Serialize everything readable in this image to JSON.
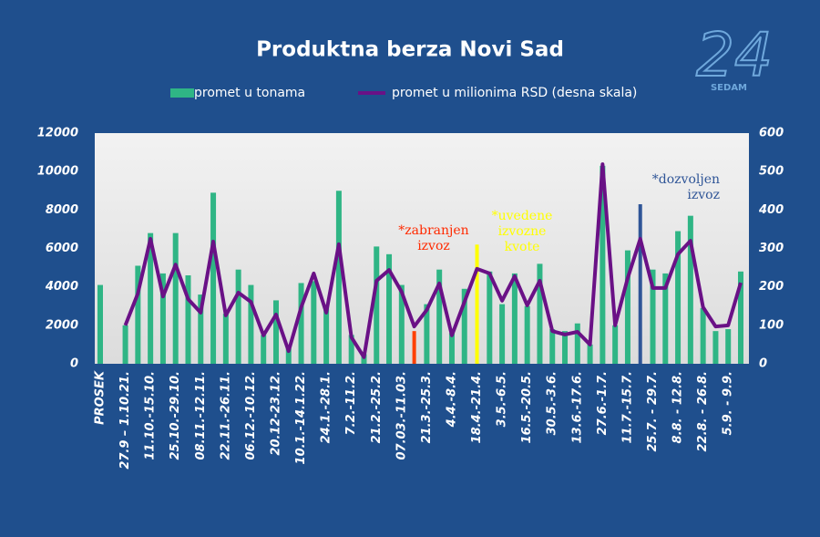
{
  "chart_data": {
    "type": "bar-line",
    "title": "Produktna berza Novi Sad",
    "logo": {
      "number": "24",
      "text": "SEDAM"
    },
    "categories": [
      "PROSEK",
      null,
      "27.9 – 1.10.21.",
      null,
      "11.10.-15.10.",
      null,
      "25.10.-29.10.",
      null,
      "08.11.-12.11.",
      null,
      "22.11.-26.11.",
      null,
      "06.12.-10.12.",
      null,
      "20.12-23.12.",
      null,
      "10.1.-14.1.22.",
      null,
      "24.1.-28.1.",
      null,
      "7.2.-11.2.",
      null,
      "21.2.-25.2.",
      null,
      "07.03.-11.03.",
      null,
      "21.3.-25.3.",
      null,
      "4.4.-8.4.",
      null,
      "18.4.-21.4.",
      null,
      "3.5.-6.5.",
      null,
      "16.5.-20.5.",
      null,
      "30.5.-3.6.",
      null,
      "13.6.-17.6.",
      null,
      "27.6.-1.7.",
      null,
      "11.7.-15.7.",
      null,
      "25.7. - 29.7.",
      null,
      "8.8. - 12.8.",
      null,
      "22.8. - 26.8.",
      null,
      "5.9. - 9.9.",
      null
    ],
    "series": [
      {
        "name": "promet u tonama",
        "type": "bar",
        "color": "#2fb585",
        "values": [
          4100,
          null,
          2000,
          5100,
          6800,
          4700,
          6800,
          4600,
          3600,
          8900,
          2600,
          4900,
          4100,
          1500,
          3300,
          800,
          4200,
          4300,
          3000,
          9000,
          1500,
          500,
          6100,
          5700,
          4100,
          1700,
          3100,
          4900,
          1600,
          3900,
          6200,
          4800,
          3100,
          4700,
          3000,
          5200,
          1800,
          1700,
          2100,
          1000,
          10300,
          2000,
          5900,
          8300,
          4900,
          4700,
          6900,
          7700,
          2900,
          1700,
          1800,
          4800
        ],
        "highlights": [
          {
            "index": 25,
            "color": "#ff4000"
          },
          {
            "index": 30,
            "color": "#ffff00"
          },
          {
            "index": 43,
            "color": "#2f5597"
          }
        ]
      },
      {
        "name": "promet u milionima RSD (desna skala)",
        "type": "line",
        "axis": "y2",
        "color": "#6a1186",
        "values": [
          null,
          null,
          100,
          183,
          325,
          175,
          258,
          168,
          133,
          318,
          126,
          185,
          161,
          74,
          128,
          33,
          147,
          235,
          133,
          311,
          69,
          17,
          216,
          244,
          187,
          97,
          140,
          209,
          74,
          161,
          247,
          235,
          164,
          228,
          152,
          216,
          85,
          76,
          83,
          50,
          519,
          100,
          223,
          325,
          197,
          197,
          285,
          320,
          147,
          97,
          100,
          211
        ]
      }
    ],
    "annotations": [
      {
        "lines": [
          "*zabranjen",
          "izvoz"
        ],
        "color": "#ff2a00"
      },
      {
        "lines": [
          "*uvedene",
          "izvozne",
          "kvote"
        ],
        "color": "#ffff00"
      },
      {
        "lines": [
          "*dozvoljen",
          "izvoz"
        ],
        "color": "#2f5597"
      }
    ],
    "ylim": [
      0,
      12000
    ],
    "yticks": [
      0,
      2000,
      4000,
      6000,
      8000,
      10000,
      12000
    ],
    "y2lim": [
      0,
      600
    ],
    "y2ticks": [
      0,
      100,
      200,
      300,
      400,
      500,
      600
    ],
    "legend": "top"
  }
}
